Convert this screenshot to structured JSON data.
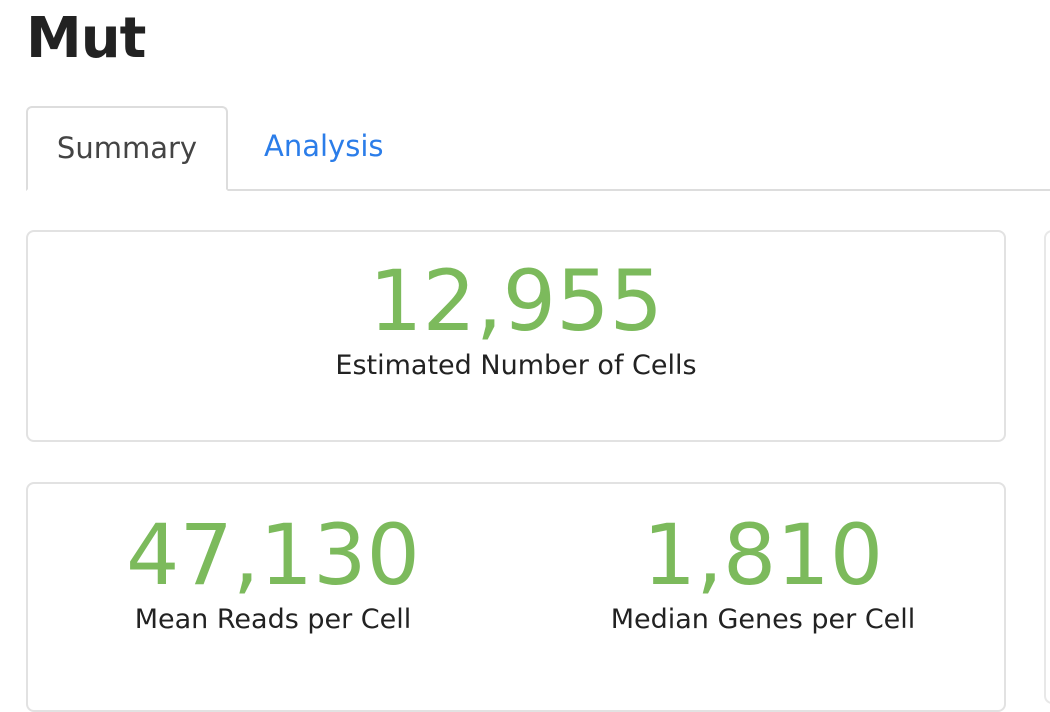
{
  "header": {
    "title": "Mut"
  },
  "tabs": [
    "Summary",
    "Analysis"
  ],
  "cards": [
    {
      "metrics": [
        {
          "value": "12,955",
          "label": "Estimated Number of Cells"
        }
      ]
    },
    {
      "metrics": [
        {
          "value": "47,130",
          "label": "Mean Reads per Cell"
        },
        {
          "value": "1,810",
          "label": "Median Genes per Cell"
        }
      ]
    }
  ]
}
